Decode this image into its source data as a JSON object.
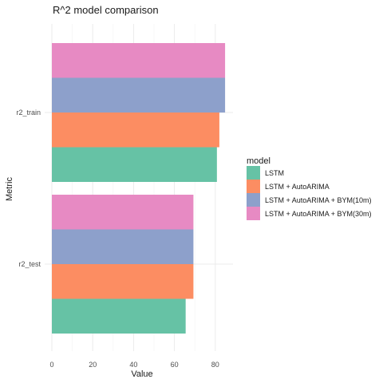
{
  "chart_data": {
    "type": "bar",
    "orientation": "horizontal",
    "title": "R^2 model comparison",
    "xlabel": "Value",
    "ylabel": "Metric",
    "categories": [
      "r2_train",
      "r2_test"
    ],
    "xlim": [
      0,
      86
    ],
    "xticks": [
      0,
      20,
      40,
      60,
      80
    ],
    "grid": true,
    "legend_title": "model",
    "legend_position": "right",
    "series": [
      {
        "name": "LSTM",
        "color": "#66c2a5",
        "values": [
          80.8,
          65.5
        ]
      },
      {
        "name": "LSTM + AutoARIMA",
        "color": "#fc8d62",
        "values": [
          82.0,
          69.3
        ]
      },
      {
        "name": "LSTM + AutoARIMA + BYM(10m)",
        "color": "#8da0cb",
        "values": [
          84.8,
          69.3
        ]
      },
      {
        "name": "LSTM + AutoARIMA + BYM(30m)",
        "color": "#e78ac3",
        "values": [
          84.8,
          69.3
        ]
      }
    ]
  }
}
